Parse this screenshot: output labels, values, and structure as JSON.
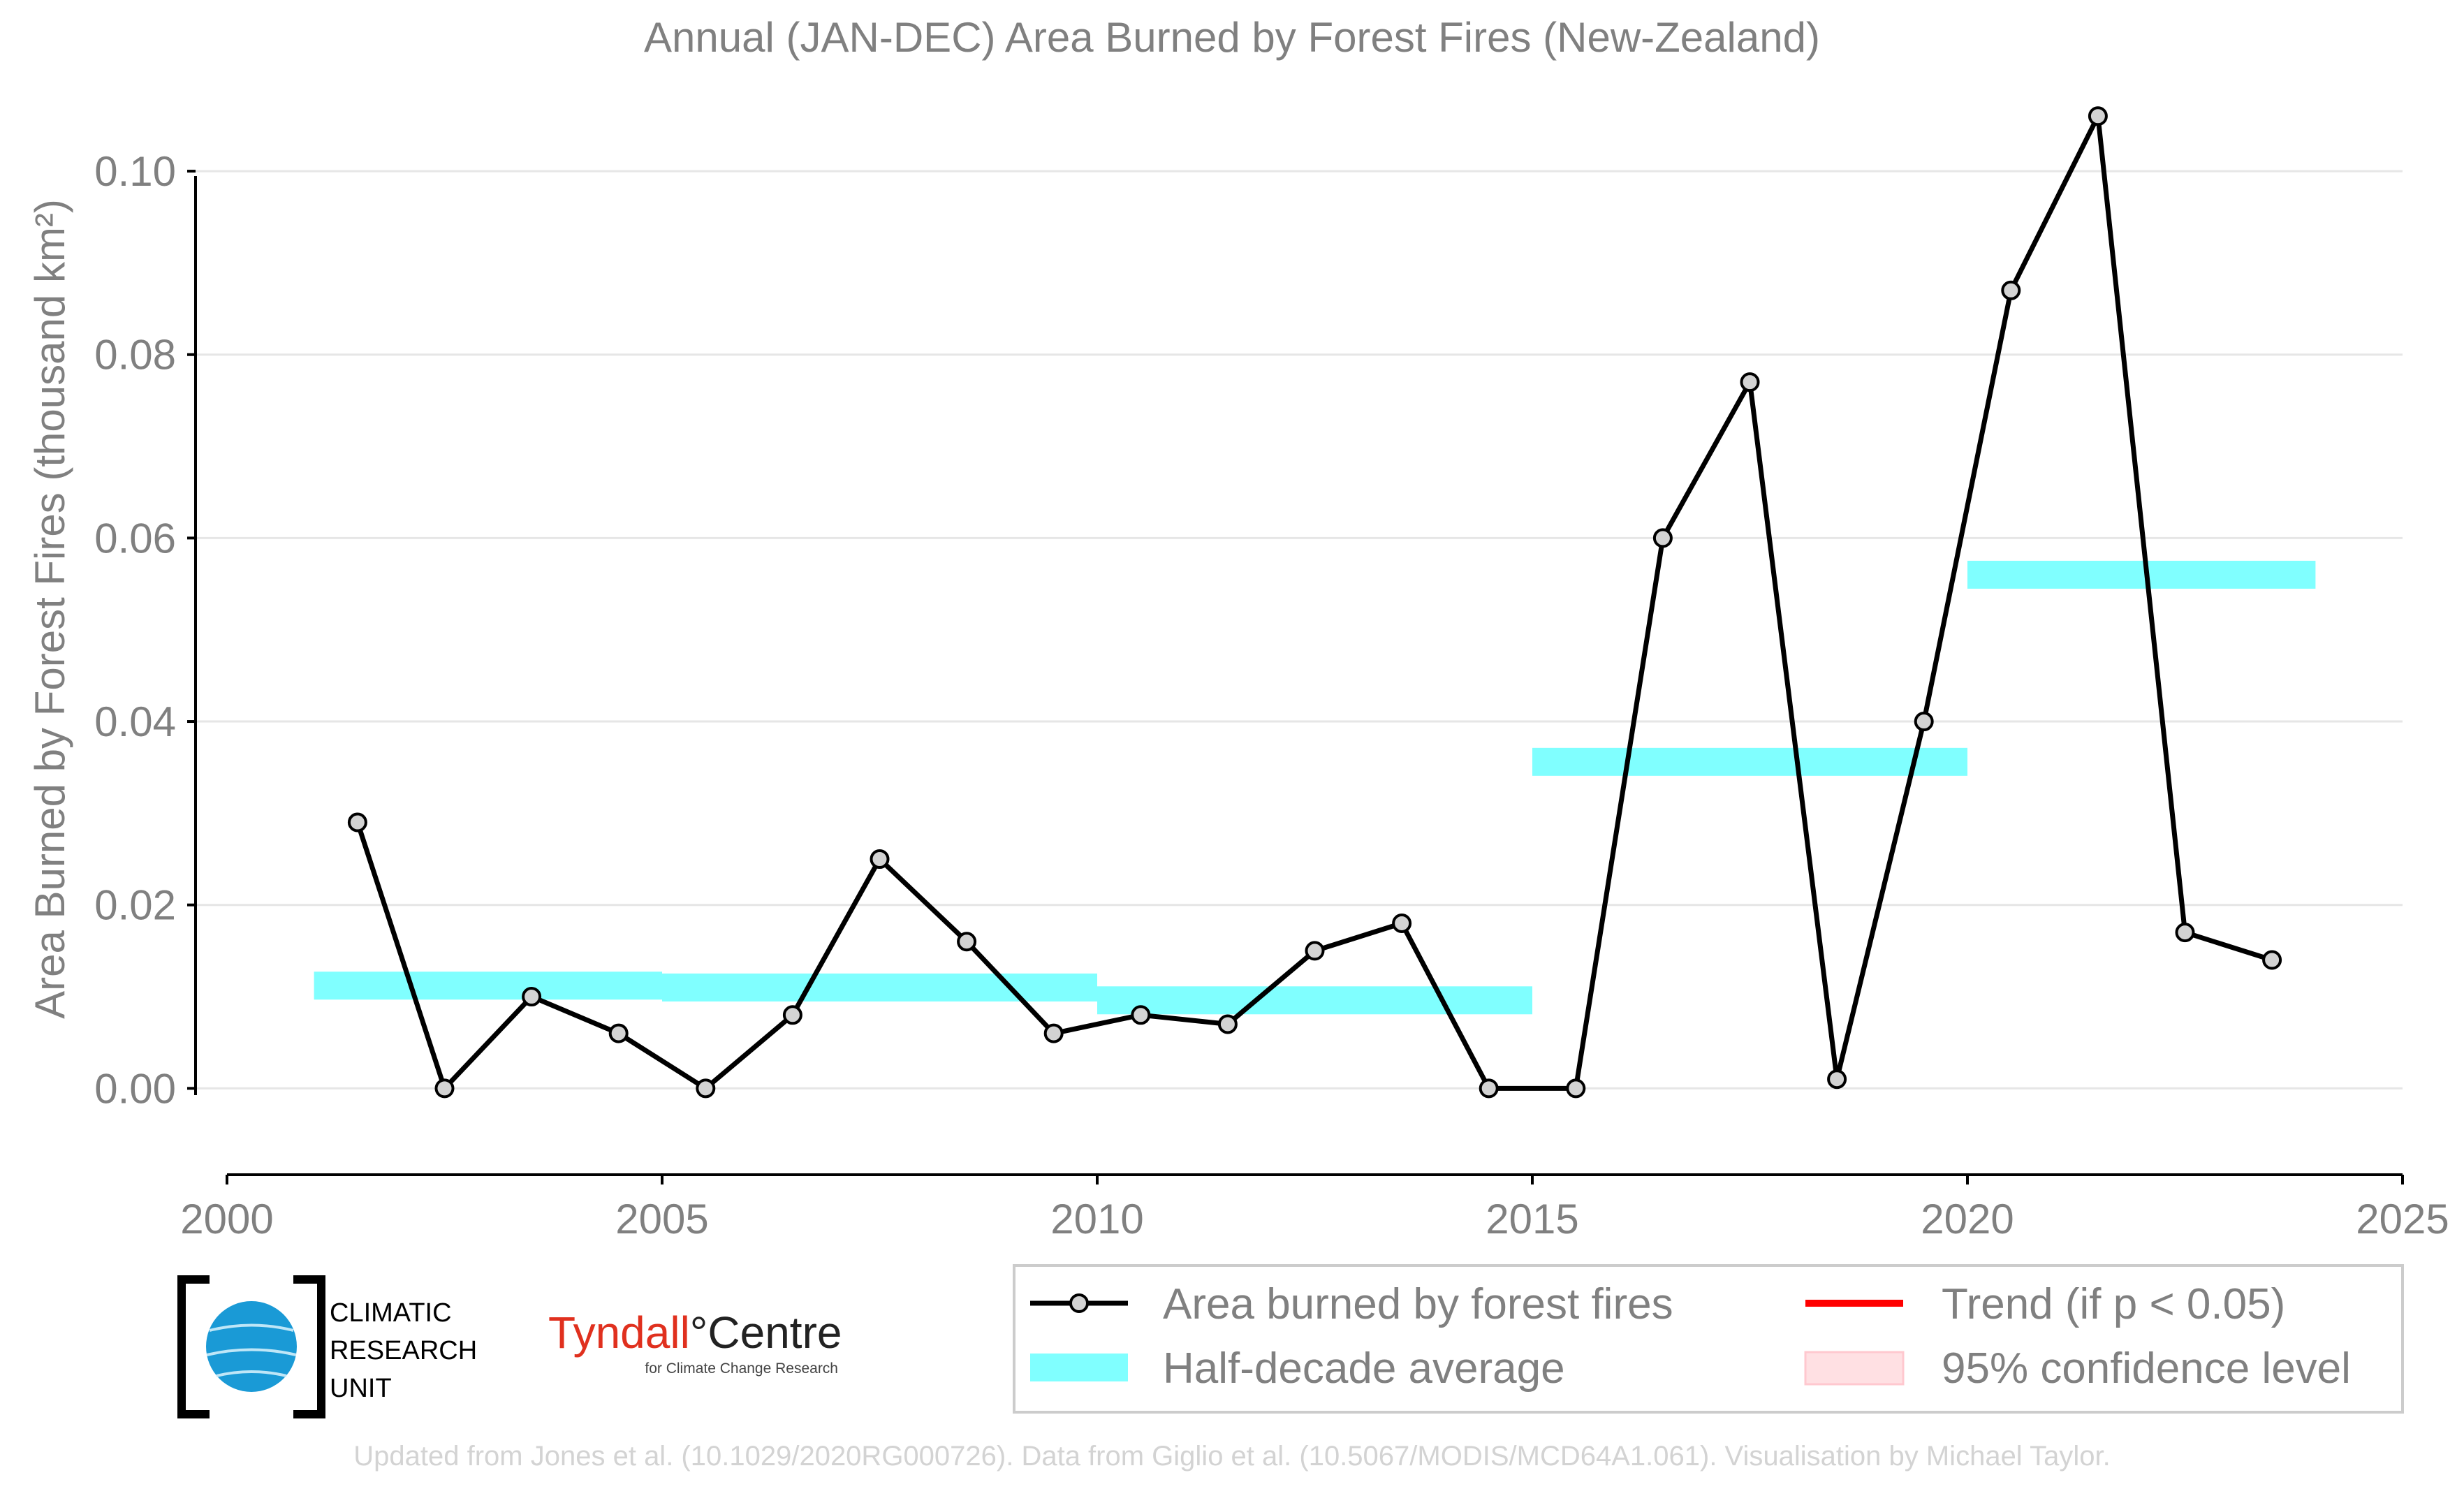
{
  "chart_data": {
    "type": "line",
    "title": "Annual (JAN-DEC) Area Burned by Forest Fires (New-Zealand)",
    "ylabel": "Area Burned by Forest Fires (thousand km²)",
    "xlim": [
      2000,
      2025
    ],
    "ylim": [
      -0.0085,
      0.108
    ],
    "x_ticks": [
      "2000",
      "2005",
      "2010",
      "2015",
      "2020",
      "2025"
    ],
    "y_ticks": [
      "0.00",
      "0.02",
      "0.04",
      "0.06",
      "0.08",
      "0.10"
    ],
    "grid": true,
    "series": [
      {
        "name": "Area burned by forest fires",
        "color": "#000000",
        "marker_fill": "#d3d3d3",
        "x": [
          2001.5,
          2002.5,
          2003.5,
          2004.5,
          2005.5,
          2006.5,
          2007.5,
          2008.5,
          2009.5,
          2010.5,
          2011.5,
          2012.5,
          2013.5,
          2014.5,
          2015.5,
          2016.5,
          2017.5,
          2018.5,
          2019.5,
          2020.5,
          2021.5,
          2022.5,
          2023.5
        ],
        "y": [
          0.029,
          0.0,
          0.01,
          0.006,
          0.0,
          0.008,
          0.025,
          0.016,
          0.006,
          0.008,
          0.007,
          0.015,
          0.018,
          0.0,
          0.0,
          0.06,
          0.077,
          0.001,
          0.04,
          0.087,
          0.106,
          0.017,
          0.014
        ]
      }
    ],
    "half_decade_average": {
      "name": "Half-decade average",
      "color": "#80ffff",
      "segments": [
        {
          "x_start": 2001,
          "x_end": 2005,
          "value": 0.0112
        },
        {
          "x_start": 2005,
          "x_end": 2010,
          "value": 0.011
        },
        {
          "x_start": 2010,
          "x_end": 2015,
          "value": 0.0096
        },
        {
          "x_start": 2015,
          "x_end": 2020,
          "value": 0.0356
        },
        {
          "x_start": 2020,
          "x_end": 2024,
          "value": 0.056
        }
      ]
    },
    "legend": {
      "position": "bottom-right",
      "entries": [
        {
          "label": "Area burned by forest fires",
          "kind": "line-marker",
          "color": "#000000"
        },
        {
          "label": "Half-decade average",
          "kind": "band",
          "color": "#80ffff"
        },
        {
          "label": "Trend (if p < 0.05)",
          "kind": "line",
          "color": "#ff0000"
        },
        {
          "label": "95% confidence level",
          "kind": "band",
          "color": "#ffe0e3"
        }
      ]
    }
  },
  "logos": {
    "cru_lines": [
      "CLIMATIC",
      "RESEARCH",
      "UNIT"
    ],
    "tyndall_red": "Tyndall",
    "tyndall_dark": "°Centre",
    "tyndall_sub": "for Climate Change Research"
  },
  "source_note": "Updated from Jones et al. (10.1029/2020RG000726). Data from Giglio et al. (10.5067/MODIS/MCD64A1.061). Visualisation by Michael Taylor."
}
